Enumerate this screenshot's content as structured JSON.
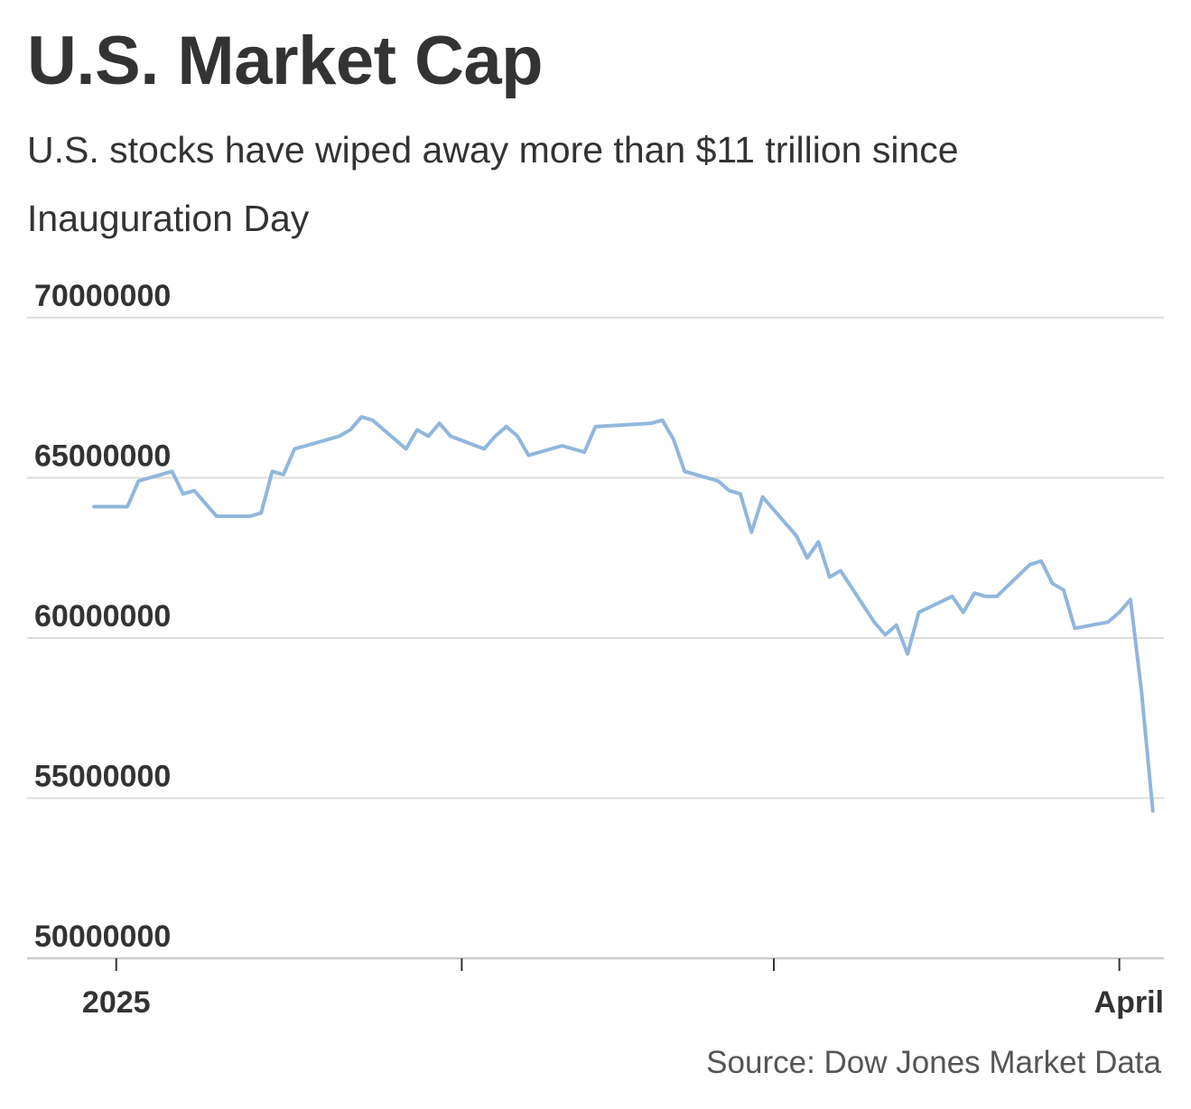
{
  "header": {
    "title": "U.S. Market Cap",
    "subtitle": "U.S. stocks have wiped away more than $11 trillion since Inauguration Day"
  },
  "footer": {
    "source": "Source: Dow Jones Market Data"
  },
  "colors": {
    "line": "#92b6dc",
    "grid": "#dddddd",
    "text": "#333333"
  },
  "chart_data": {
    "type": "line",
    "title": "U.S. Market Cap",
    "subtitle": "U.S. stocks have wiped away more than $11 trillion since Inauguration Day",
    "xlabel": "",
    "ylabel": "",
    "ylim": [
      50000000,
      70000000
    ],
    "y_ticks": [
      70000000,
      65000000,
      60000000,
      55000000,
      50000000
    ],
    "y_tick_labels": [
      "70000000",
      "65000000",
      "60000000",
      "55000000",
      "50000000"
    ],
    "x_range": [
      "2024-12-24",
      "2025-04-05"
    ],
    "x_ticks": [
      "2025-01-01",
      "2025-02-01",
      "2025-03-01",
      "2025-04-01"
    ],
    "x_tick_labels": [
      "2025",
      "",
      "",
      "April"
    ],
    "grid": true,
    "legend": "none",
    "series": [
      {
        "values": [
          [
            "2024-12-30",
            64100000
          ],
          [
            "2024-12-31",
            64100000
          ],
          [
            "2025-01-02",
            64100000
          ],
          [
            "2025-01-03",
            64900000
          ],
          [
            "2025-01-06",
            65200000
          ],
          [
            "2025-01-07",
            64500000
          ],
          [
            "2025-01-08",
            64600000
          ],
          [
            "2025-01-10",
            63800000
          ],
          [
            "2025-01-13",
            63800000
          ],
          [
            "2025-01-14",
            63900000
          ],
          [
            "2025-01-15",
            65200000
          ],
          [
            "2025-01-16",
            65100000
          ],
          [
            "2025-01-17",
            65900000
          ],
          [
            "2025-01-21",
            66300000
          ],
          [
            "2025-01-22",
            66500000
          ],
          [
            "2025-01-23",
            66900000
          ],
          [
            "2025-01-24",
            66800000
          ],
          [
            "2025-01-27",
            65900000
          ],
          [
            "2025-01-28",
            66500000
          ],
          [
            "2025-01-29",
            66300000
          ],
          [
            "2025-01-30",
            66700000
          ],
          [
            "2025-01-31",
            66300000
          ],
          [
            "2025-02-03",
            65900000
          ],
          [
            "2025-02-04",
            66300000
          ],
          [
            "2025-02-05",
            66600000
          ],
          [
            "2025-02-06",
            66300000
          ],
          [
            "2025-02-07",
            65700000
          ],
          [
            "2025-02-10",
            66000000
          ],
          [
            "2025-02-11",
            65900000
          ],
          [
            "2025-02-12",
            65800000
          ],
          [
            "2025-02-13",
            66600000
          ],
          [
            "2025-02-18",
            66700000
          ],
          [
            "2025-02-19",
            66800000
          ],
          [
            "2025-02-20",
            66200000
          ],
          [
            "2025-02-21",
            65200000
          ],
          [
            "2025-02-24",
            64900000
          ],
          [
            "2025-02-25",
            64600000
          ],
          [
            "2025-02-26",
            64500000
          ],
          [
            "2025-02-27",
            63300000
          ],
          [
            "2025-02-28",
            64400000
          ],
          [
            "2025-03-03",
            63200000
          ],
          [
            "2025-03-04",
            62500000
          ],
          [
            "2025-03-05",
            63000000
          ],
          [
            "2025-03-06",
            61900000
          ],
          [
            "2025-03-07",
            62100000
          ],
          [
            "2025-03-10",
            60500000
          ],
          [
            "2025-03-11",
            60100000
          ],
          [
            "2025-03-12",
            60400000
          ],
          [
            "2025-03-13",
            59500000
          ],
          [
            "2025-03-14",
            60800000
          ],
          [
            "2025-03-17",
            61300000
          ],
          [
            "2025-03-18",
            60800000
          ],
          [
            "2025-03-19",
            61400000
          ],
          [
            "2025-03-20",
            61300000
          ],
          [
            "2025-03-21",
            61300000
          ],
          [
            "2025-03-24",
            62300000
          ],
          [
            "2025-03-25",
            62400000
          ],
          [
            "2025-03-26",
            61700000
          ],
          [
            "2025-03-27",
            61500000
          ],
          [
            "2025-03-28",
            60300000
          ],
          [
            "2025-03-31",
            60500000
          ],
          [
            "2025-04-01",
            60800000
          ],
          [
            "2025-04-02",
            61200000
          ],
          [
            "2025-04-03",
            58300000
          ],
          [
            "2025-04-04",
            54600000
          ]
        ]
      }
    ]
  }
}
